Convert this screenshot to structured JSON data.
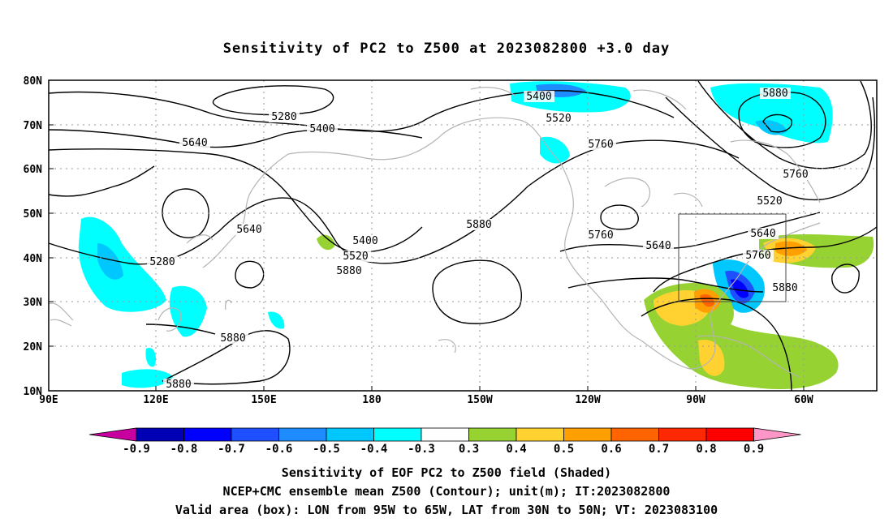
{
  "title": "Sensitivity of PC2 to Z500 at 2023082800 +3.0 day",
  "lat_labels": [
    "80N",
    "70N",
    "60N",
    "50N",
    "40N",
    "30N",
    "20N",
    "10N"
  ],
  "lon_labels": [
    "90E",
    "120E",
    "150E",
    "180",
    "150W",
    "120W",
    "90W",
    "60W"
  ],
  "contour_labels": [
    {
      "text": "5280"
    },
    {
      "text": "5400"
    },
    {
      "text": "5640"
    },
    {
      "text": "5400"
    },
    {
      "text": "5520"
    },
    {
      "text": "5640"
    },
    {
      "text": "5280"
    },
    {
      "text": "5400"
    },
    {
      "text": "5520"
    },
    {
      "text": "5880"
    },
    {
      "text": "5760"
    },
    {
      "text": "5520"
    },
    {
      "text": "5640"
    },
    {
      "text": "5760"
    },
    {
      "text": "5880"
    },
    {
      "text": "5760"
    },
    {
      "text": "5880"
    },
    {
      "text": "5640"
    },
    {
      "text": "5760"
    },
    {
      "text": "5880"
    },
    {
      "text": "5880"
    },
    {
      "text": "5880"
    }
  ],
  "colorbar": {
    "labels": [
      "-0.9",
      "-0.8",
      "-0.7",
      "-0.6",
      "-0.5",
      "-0.4",
      "-0.3",
      "0.3",
      "0.4",
      "0.5",
      "0.6",
      "0.7",
      "0.8",
      "0.9"
    ],
    "colors": [
      "#0000b4",
      "#0000ff",
      "#1e50ff",
      "#1e8cff",
      "#00c8ff",
      "#00ffff",
      "#ffffff",
      "#96d232",
      "#ffd232",
      "#ffa000",
      "#ff6400",
      "#ff2800",
      "#ff0000"
    ],
    "end_low": "#c800a0",
    "end_high": "#ff96c8"
  },
  "captions": {
    "line1": "Sensitivity of EOF PC2 to Z500 field (Shaded)",
    "line2": "NCEP+CMC ensemble mean Z500 (Contour); unit(m); IT:2023082800",
    "line3": "Valid area (box): LON from 95W to 65W, LAT from 30N to 50N; VT: 2023083100"
  }
}
